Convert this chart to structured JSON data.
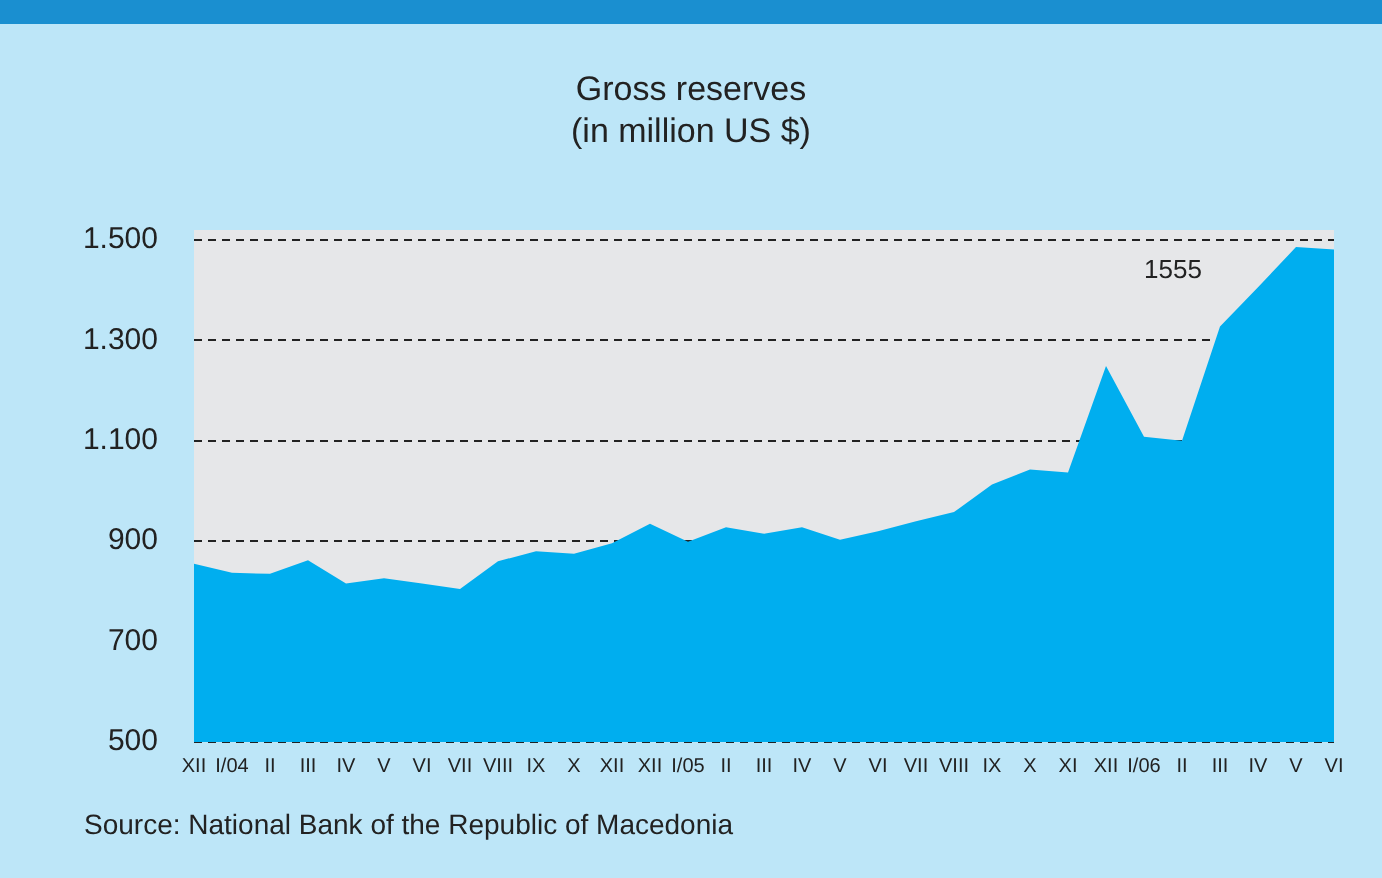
{
  "chart_data": {
    "type": "area",
    "title": "Gross reserves",
    "subtitle": "(in million US $)",
    "categories": [
      "XII",
      "I/04",
      "II",
      "III",
      "IV",
      "V",
      "VI",
      "VII",
      "VIII",
      "IX",
      "X",
      "XII",
      "XII",
      "I/05",
      "II",
      "III",
      "IV",
      "V",
      "VI",
      "VII",
      "VIII",
      "IX",
      "X",
      "XI",
      "XII",
      "I/06",
      "II",
      "III",
      "IV",
      "V",
      "VI"
    ],
    "series": [
      {
        "color": "#00aeef",
        "values": [
          855,
          837,
          835,
          862,
          816,
          826,
          816,
          805,
          860,
          880,
          875,
          896,
          935,
          899,
          928,
          915,
          928,
          903,
          920,
          940,
          958,
          1013,
          1043,
          1037,
          1249,
          1108,
          1100,
          1328,
          1406,
          1486,
          1481
        ]
      }
    ],
    "ylim": [
      500,
      1520
    ],
    "yticks": [
      500,
      700,
      900,
      {
        "value": 1100,
        "label": "1.100"
      },
      {
        "value": 1300,
        "label": "1.300"
      },
      {
        "value": 1500,
        "label": "1.500"
      }
    ],
    "grid": "y",
    "line_style": "dashed",
    "legend": false,
    "annotations": [
      "1555",
      "Source: National Bank of the Republic of Macedonia"
    ]
  }
}
